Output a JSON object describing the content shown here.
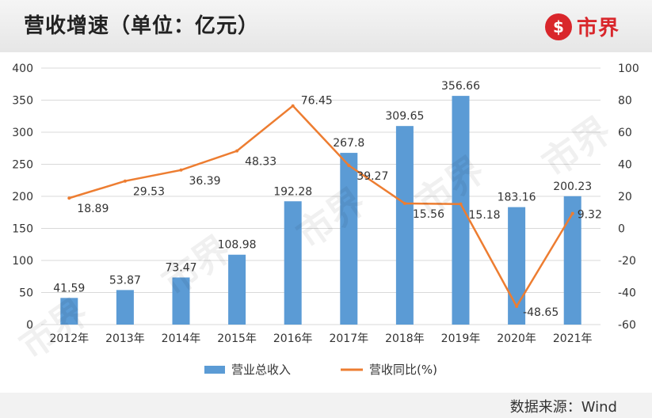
{
  "header": {
    "title": "营收增速（单位：亿元）",
    "logo_mark": "$",
    "logo_text": "市界"
  },
  "watermark": "市界",
  "footer": {
    "source": "数据来源：Wind"
  },
  "chart_data": {
    "type": "bar",
    "categories": [
      "2012年",
      "2013年",
      "2014年",
      "2015年",
      "2016年",
      "2017年",
      "2018年",
      "2019年",
      "2020年",
      "2021年"
    ],
    "series": [
      {
        "name": "营业总收入",
        "type": "bar",
        "axis": "left",
        "color": "#5b9bd5",
        "values": [
          41.59,
          53.87,
          73.47,
          108.98,
          192.28,
          267.8,
          309.65,
          356.66,
          183.16,
          200.23
        ],
        "labels": [
          "41.59",
          "53.87",
          "73.47",
          "108.98",
          "192.28",
          "267.8",
          "309.65",
          "356.66",
          "183.16",
          "200.23"
        ]
      },
      {
        "name": "营收同比(%)",
        "type": "line",
        "axis": "right",
        "color": "#ed7d31",
        "values": [
          18.89,
          29.53,
          36.39,
          48.33,
          76.45,
          39.27,
          15.56,
          15.18,
          -48.65,
          9.32
        ],
        "labels": [
          "18.89",
          "29.53",
          "36.39",
          "48.33",
          "76.45",
          "39.27",
          "15.56",
          "15.18",
          "-48.65",
          "9.32"
        ]
      }
    ],
    "y_left": {
      "min": 0,
      "max": 400,
      "step": 50,
      "ticks": [
        "0",
        "50",
        "100",
        "150",
        "200",
        "250",
        "300",
        "350",
        "400"
      ]
    },
    "y_right": {
      "min": -60,
      "max": 100,
      "step": 20,
      "ticks": [
        "-60",
        "-40",
        "-20",
        "0",
        "20",
        "40",
        "60",
        "80",
        "100"
      ]
    },
    "legend": "bottom",
    "grid": true
  }
}
